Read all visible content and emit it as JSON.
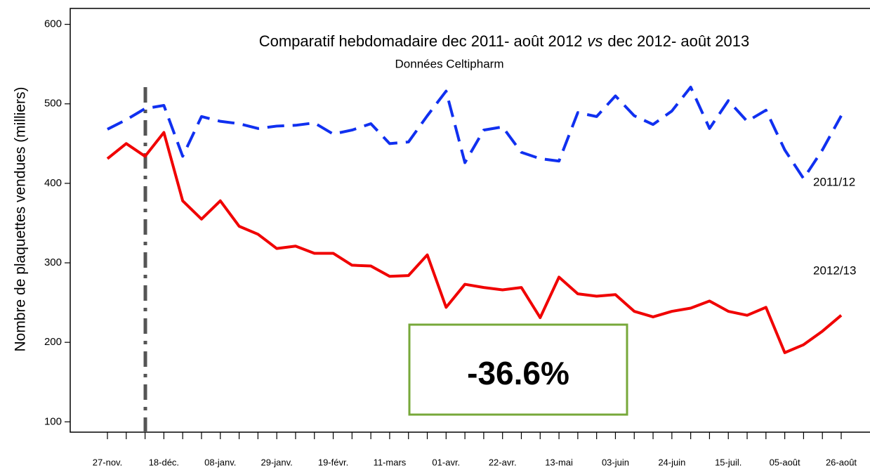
{
  "chart_data": {
    "type": "line",
    "title_parts": [
      "Comparatif hebdomadaire dec 2011- août 2012",
      "vs",
      "dec 2012- août 2013"
    ],
    "subtitle": "Données Celtipharm",
    "y_label": "Nombre de plaquettes vendues  (milliers)",
    "categories": [
      "27-nov.",
      null,
      null,
      "18-déc.",
      null,
      null,
      "08-janv.",
      null,
      null,
      "29-janv.",
      null,
      null,
      "19-févr.",
      null,
      null,
      "11-mars",
      null,
      null,
      "01-avr.",
      null,
      null,
      "22-avr.",
      null,
      null,
      "13-mai",
      null,
      null,
      "03-juin",
      null,
      null,
      "24-juin",
      null,
      null,
      "15-juil.",
      null,
      null,
      "05-août",
      null,
      null,
      "26-août"
    ],
    "series": [
      {
        "name": "2011/12",
        "color": "#1030f0",
        "dashed": true,
        "values": [
          468,
          480,
          494,
          498,
          434,
          484,
          478,
          475,
          469,
          472,
          473,
          476,
          462,
          467,
          475,
          450,
          452,
          485,
          516,
          426,
          467,
          471,
          439,
          431,
          428,
          489,
          484,
          510,
          485,
          474,
          491,
          521,
          469,
          504,
          478,
          492,
          442,
          406,
          442,
          485
        ]
      },
      {
        "name": "2012/13",
        "color": "#f00000",
        "dashed": false,
        "values": [
          431,
          450,
          434,
          464,
          378,
          355,
          378,
          346,
          336,
          318,
          321,
          312,
          312,
          297,
          296,
          283,
          284,
          310,
          244,
          273,
          269,
          266,
          269,
          231,
          282,
          261,
          258,
          260,
          239,
          232,
          239,
          243,
          252,
          239,
          234,
          244,
          187,
          197,
          214,
          234
        ]
      }
    ],
    "ylim": [
      87,
      620
    ],
    "yticks": [
      100,
      200,
      300,
      400,
      500,
      600
    ],
    "grid": false,
    "annotation": {
      "text": "-36.6%",
      "color": "#77a83a"
    }
  }
}
